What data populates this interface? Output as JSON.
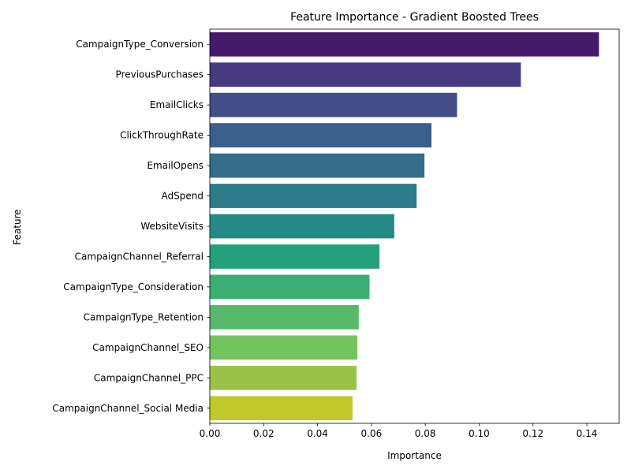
{
  "chart_data": {
    "type": "bar",
    "orientation": "horizontal",
    "title": "Feature Importance - Gradient Boosted Trees",
    "xlabel": "Importance",
    "ylabel": "Feature",
    "xlim": [
      0,
      0.152
    ],
    "xticks": [
      0.0,
      0.02,
      0.04,
      0.06,
      0.08,
      0.1,
      0.12,
      0.14
    ],
    "xtick_labels": [
      "0.00",
      "0.02",
      "0.04",
      "0.06",
      "0.08",
      "0.10",
      "0.12",
      "0.14"
    ],
    "grid": false,
    "legend": "none",
    "categories": [
      "CampaignType_Conversion",
      "PreviousPurchases",
      "EmailClicks",
      "ClickThroughRate",
      "EmailOpens",
      "AdSpend",
      "WebsiteVisits",
      "CampaignChannel_Referral",
      "CampaignType_Consideration",
      "CampaignType_Retention",
      "CampaignChannel_SEO",
      "CampaignChannel_PPC",
      "CampaignChannel_Social Media"
    ],
    "values": [
      0.1445,
      0.1155,
      0.0918,
      0.0823,
      0.0797,
      0.0768,
      0.0685,
      0.063,
      0.0593,
      0.0553,
      0.0548,
      0.0545,
      0.053
    ],
    "colors": [
      "#47196a",
      "#473a82",
      "#424d8a",
      "#3a5f8a",
      "#356d8b",
      "#2e7b8a",
      "#258a85",
      "#24a07c",
      "#3bae73",
      "#55b969",
      "#74c45e",
      "#9ac449",
      "#c1c82c"
    ]
  }
}
